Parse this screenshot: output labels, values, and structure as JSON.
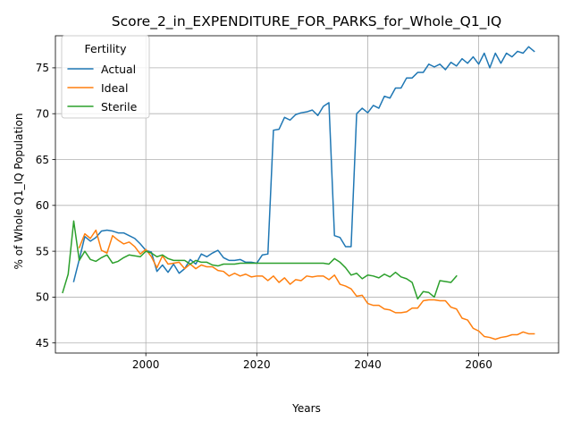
{
  "chart_data": {
    "type": "line",
    "title": "Score_2_in_EXPENDITURE_FOR_PARKS_for_Whole_Q1_IQ",
    "xlabel": "Years",
    "ylabel": "% of Whole Q1_IQ Population",
    "xlim": [
      1983.7,
      2074.4
    ],
    "ylim": [
      43.9,
      78.5
    ],
    "xticks": [
      2000,
      2020,
      2040,
      2060
    ],
    "yticks": [
      45,
      50,
      55,
      60,
      65,
      70,
      75
    ],
    "grid": true,
    "legend": {
      "title": "Fertility",
      "placement": "top-left"
    },
    "series": [
      {
        "name": "Actual",
        "color": "#1f77b4",
        "x": [
          1987,
          1988,
          1989,
          1990,
          1991,
          1992,
          1993,
          1994,
          1995,
          1996,
          1997,
          1998,
          1999,
          2000,
          2001,
          2002,
          2003,
          2004,
          2005,
          2006,
          2007,
          2008,
          2009,
          2010,
          2011,
          2012,
          2013,
          2014,
          2015,
          2016,
          2017,
          2018,
          2019,
          2020,
          2021,
          2022,
          2023,
          2024,
          2025,
          2026,
          2027,
          2028,
          2029,
          2030,
          2031,
          2032,
          2033,
          2034,
          2035,
          2036,
          2037,
          2038,
          2039,
          2040,
          2041,
          2042,
          2043,
          2044,
          2045,
          2046,
          2047,
          2048,
          2049,
          2050,
          2051,
          2052,
          2053,
          2054,
          2055,
          2056,
          2057,
          2058,
          2059,
          2060,
          2061,
          2062,
          2063,
          2064,
          2065,
          2066,
          2067,
          2068,
          2069,
          2070
        ],
        "values": [
          51.7,
          54.1,
          56.6,
          56.1,
          56.5,
          57.2,
          57.3,
          57.2,
          57.0,
          57.0,
          56.7,
          56.4,
          55.8,
          55.1,
          54.9,
          52.8,
          53.5,
          52.7,
          53.6,
          52.6,
          53.1,
          54.1,
          53.6,
          54.7,
          54.4,
          54.8,
          55.1,
          54.3,
          54.0,
          54.0,
          54.1,
          53.8,
          53.8,
          53.7,
          54.6,
          54.7,
          68.2,
          68.3,
          69.6,
          69.3,
          69.9,
          70.1,
          70.2,
          70.4,
          69.8,
          70.8,
          71.2,
          56.7,
          56.5,
          55.5,
          55.5,
          70.0,
          70.6,
          70.1,
          70.9,
          70.6,
          71.9,
          71.7,
          72.8,
          72.8,
          73.9,
          73.9,
          74.5,
          74.5,
          75.4,
          75.1,
          75.4,
          74.8,
          75.6,
          75.2,
          76.0,
          75.5,
          76.2,
          75.4,
          76.6,
          75.0,
          76.6,
          75.5,
          76.6,
          76.2,
          76.8,
          76.6,
          77.3,
          76.8
        ]
      },
      {
        "name": "Ideal",
        "color": "#ff7f0e",
        "x": [
          1988,
          1989,
          1990,
          1991,
          1992,
          1993,
          1994,
          1995,
          1996,
          1997,
          1998,
          1999,
          2000,
          2001,
          2002,
          2003,
          2004,
          2005,
          2006,
          2007,
          2008,
          2009,
          2010,
          2011,
          2012,
          2013,
          2014,
          2015,
          2016,
          2017,
          2018,
          2019,
          2020,
          2021,
          2022,
          2023,
          2024,
          2025,
          2026,
          2027,
          2028,
          2029,
          2030,
          2031,
          2032,
          2033,
          2034,
          2035,
          2036,
          2037,
          2038,
          2039,
          2040,
          2041,
          2042,
          2043,
          2044,
          2045,
          2046,
          2047,
          2048,
          2049,
          2050,
          2051,
          2052,
          2053,
          2054,
          2055,
          2056,
          2057,
          2058,
          2059,
          2060,
          2061,
          2062,
          2063,
          2064,
          2065,
          2066,
          2067,
          2068,
          2069,
          2070
        ],
        "values": [
          55.4,
          56.9,
          56.4,
          57.3,
          55.1,
          54.8,
          56.7,
          56.2,
          55.8,
          56.0,
          55.5,
          54.7,
          55.2,
          54.4,
          53.2,
          54.5,
          53.6,
          53.7,
          53.8,
          53.1,
          53.6,
          53.1,
          53.5,
          53.3,
          53.3,
          52.9,
          52.8,
          52.3,
          52.6,
          52.3,
          52.5,
          52.2,
          52.3,
          52.3,
          51.8,
          52.3,
          51.6,
          52.1,
          51.4,
          51.9,
          51.8,
          52.3,
          52.2,
          52.3,
          52.3,
          51.9,
          52.4,
          51.4,
          51.2,
          50.9,
          50.1,
          50.2,
          49.3,
          49.1,
          49.1,
          48.7,
          48.6,
          48.3,
          48.3,
          48.4,
          48.8,
          48.8,
          49.6,
          49.7,
          49.7,
          49.6,
          49.6,
          48.9,
          48.7,
          47.7,
          47.5,
          46.6,
          46.3,
          45.7,
          45.6,
          45.4,
          45.6,
          45.7,
          45.9,
          45.9,
          46.2,
          46.0,
          46.0
        ]
      },
      {
        "name": "Sterile",
        "color": "#2ca02c",
        "x": [
          1985,
          1986,
          1987,
          1988,
          1989,
          1990,
          1991,
          1992,
          1993,
          1994,
          1995,
          1996,
          1997,
          1998,
          1999,
          2000,
          2001,
          2002,
          2003,
          2004,
          2005,
          2006,
          2007,
          2008,
          2009,
          2010,
          2011,
          2012,
          2013,
          2014,
          2015,
          2016,
          2017,
          2018,
          2019,
          2020,
          2021,
          2022,
          2023,
          2024,
          2025,
          2026,
          2027,
          2028,
          2029,
          2030,
          2031,
          2032,
          2033,
          2034,
          2035,
          2036,
          2037,
          2038,
          2039,
          2040,
          2041,
          2042,
          2043,
          2044,
          2045,
          2046,
          2047,
          2048,
          2049,
          2050,
          2051,
          2052,
          2053,
          2054,
          2055,
          2056
        ],
        "values": [
          50.5,
          52.5,
          58.3,
          54.0,
          55.0,
          54.1,
          53.9,
          54.3,
          54.6,
          53.7,
          53.9,
          54.3,
          54.6,
          54.5,
          54.4,
          55.0,
          54.8,
          54.4,
          54.6,
          54.2,
          54.0,
          54.0,
          54.0,
          53.6,
          54.0,
          53.8,
          53.8,
          53.5,
          53.4,
          53.6,
          53.6,
          53.6,
          53.7,
          53.7,
          53.7,
          53.7,
          53.7,
          53.7,
          53.7,
          53.7,
          53.7,
          53.7,
          53.7,
          53.7,
          53.7,
          53.7,
          53.7,
          53.7,
          53.6,
          54.2,
          53.8,
          53.2,
          52.4,
          52.6,
          52.0,
          52.4,
          52.3,
          52.1,
          52.5,
          52.2,
          52.7,
          52.2,
          52.0,
          51.6,
          49.8,
          50.6,
          50.5,
          50.0,
          51.8,
          51.7,
          51.6,
          52.3
        ]
      }
    ]
  }
}
